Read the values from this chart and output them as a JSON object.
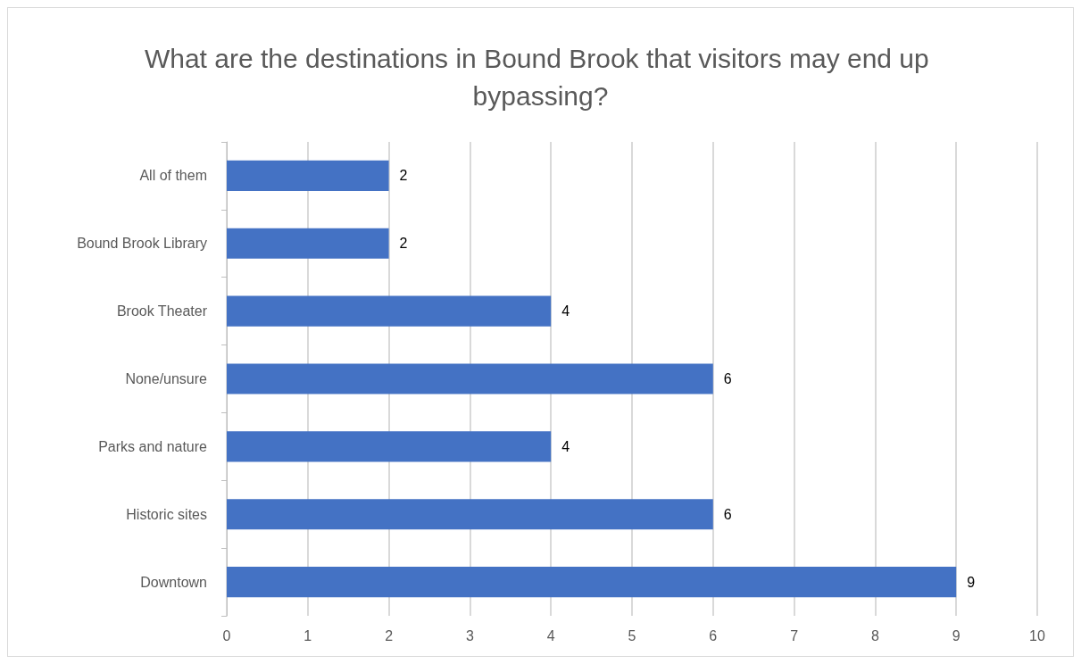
{
  "chart_data": {
    "type": "bar",
    "orientation": "horizontal",
    "title": "What are the destinations in Bound Brook that visitors may end up bypassing?",
    "categories": [
      "All of them",
      "Bound Brook Library",
      "Brook Theater",
      "None/unsure",
      "Parks and nature",
      "Historic sites",
      "Downtown"
    ],
    "values": [
      2,
      2,
      4,
      6,
      4,
      6,
      9
    ],
    "color": "#4472c4",
    "xlim": [
      0,
      10
    ],
    "xticks": [
      0,
      1,
      2,
      3,
      4,
      5,
      6,
      7,
      8,
      9,
      10
    ],
    "grid": "x",
    "data_labels": true
  }
}
